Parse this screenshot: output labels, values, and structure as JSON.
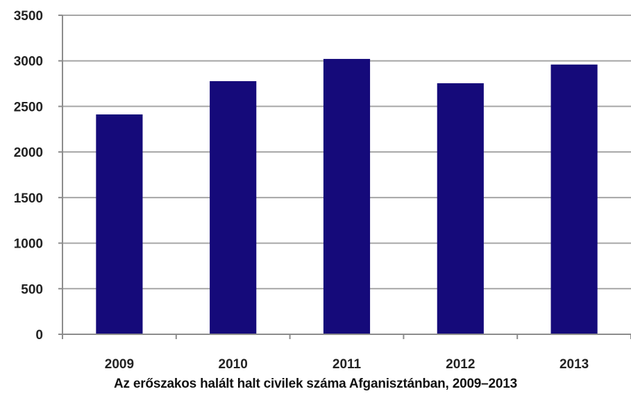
{
  "caption": "Az erőszakos halált halt civilek száma Afganisztánban, 2009–2013",
  "colors": {
    "bar": "#150a7a",
    "grid": "#a6a6a6",
    "axis": "#8c8c8c"
  },
  "chart_data": {
    "type": "bar",
    "categories": [
      "2009",
      "2010",
      "2011",
      "2012",
      "2013"
    ],
    "values": [
      2412,
      2777,
      3021,
      2754,
      2959
    ],
    "title": "",
    "xlabel": "",
    "ylabel": "",
    "ylim": [
      0,
      3500
    ],
    "yticks": [
      "0",
      "500",
      "1000",
      "1500",
      "2000",
      "2500",
      "3000",
      "3500"
    ],
    "grid": true,
    "legend": "none"
  }
}
